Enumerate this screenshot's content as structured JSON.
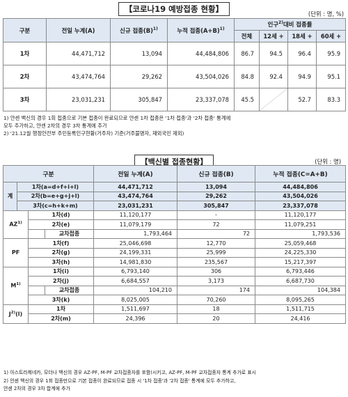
{
  "table1": {
    "title": "【코로나19 예방접종 현황】",
    "unit": "(단위 : 명, %)",
    "headers": {
      "category": "구분",
      "prev_cumulative": "전일 누계(A)",
      "new": "신규 접종(B)",
      "new_sup": "1)",
      "cumulative": "누적 접종(A+B)",
      "cumulative_sup": "1)",
      "pop_ratio": "인구",
      "pop_ratio_sup": "2)",
      "pop_ratio_rest": "대비 접종률",
      "all": "전체",
      "age12": "12세 +",
      "age18": "18세 +",
      "age60": "60세 +"
    },
    "rows": [
      {
        "label": "1차",
        "prev": "44,471,712",
        "new": "13,094",
        "cum": "44,484,806",
        "all": "86.7",
        "age12": "94.5",
        "age18": "96.4",
        "age60": "95.9"
      },
      {
        "label": "2차",
        "prev": "43,474,764",
        "new": "29,262",
        "cum": "43,504,026",
        "all": "84.8",
        "age12": "92.4",
        "age18": "94.9",
        "age60": "95.1"
      },
      {
        "label": "3차",
        "prev": "23,031,231",
        "new": "305,847",
        "cum": "23,337,078",
        "all": "45.5",
        "age12": "",
        "age18": "52.7",
        "age60": "83.3"
      }
    ],
    "notes": [
      "1) 얀센 백신의 경우 1회 접종으로 기본 접종이 완료되므로 얀센 1차 접종은 '1차 접종'과 '2차 접종' 통계에",
      "    모두 추가하고, 얀센 2차의 경우 3차 통계에 추가",
      "2) '21.12월 행정안전부 주민등록인구현황(거주자) 기준(거주불명자, 재외국민 제외)"
    ]
  },
  "table2": {
    "title": "【백신별 접종현황】",
    "unit": "(단위 : 명)",
    "headers": {
      "category": "구분",
      "prev": "전일 누계(A)",
      "new": "신규 접종(B)",
      "cum": "누적 접종(C=A+B)"
    },
    "total": {
      "label": "계",
      "rows": [
        {
          "label": "1차(a=d+f+i+l)",
          "prev": "44,471,712",
          "new": "13,094",
          "cum": "44,484,806"
        },
        {
          "label": "2차(b=e+g+j+l)",
          "prev": "43,474,764",
          "new": "29,262",
          "cum": "43,504,026"
        },
        {
          "label": "3차(c=h+k+m)",
          "prev": "23,031,231",
          "new": "305,847",
          "cum": "23,337,078"
        }
      ]
    },
    "az": {
      "label": "AZ",
      "sup": "1)",
      "d": {
        "label": "1차(d)",
        "prev": "11,120,177",
        "new": "-",
        "cum": "11,120,177"
      },
      "e": {
        "label": "2차(e)",
        "prev": "11,079,179",
        "new": "72",
        "cum": "11,079,251"
      },
      "cross": {
        "label": "교차접종",
        "prev": "1,793,464",
        "new": "72",
        "cum": "1,793,536"
      }
    },
    "pf": {
      "label": "PF",
      "f": {
        "label": "1차(f)",
        "prev": "25,046,698",
        "new": "12,770",
        "cum": "25,059,468"
      },
      "g": {
        "label": "2차(g)",
        "prev": "24,199,331",
        "new": "25,999",
        "cum": "24,225,330"
      },
      "h": {
        "label": "3차(h)",
        "prev": "14,981,830",
        "new": "235,567",
        "cum": "15,217,397"
      }
    },
    "m": {
      "label": "M",
      "sup": "1)",
      "i": {
        "label": "1차(i)",
        "prev": "6,793,140",
        "new": "306",
        "cum": "6,793,446"
      },
      "j": {
        "label": "2차(j)",
        "prev": "6,684,557",
        "new": "3,173",
        "cum": "6,687,730"
      },
      "cross": {
        "label": "교차접종",
        "prev": "104,210",
        "new": "174",
        "cum": "104,384"
      },
      "k": {
        "label": "3차(k)",
        "prev": "8,025,005",
        "new": "70,260",
        "cum": "8,095,265"
      }
    },
    "j": {
      "label": "J",
      "sup": "2)",
      "sub_label": "(l)",
      "first": {
        "label": "1차",
        "prev": "1,511,697",
        "new": "18",
        "cum": "1,511,715"
      },
      "m2": {
        "label": "2차(m)",
        "prev": "24,396",
        "new": "20",
        "cum": "24,416"
      }
    },
    "notes": [
      "1) 아스트라제네카, 모더나 백신의 경우 AZ-PF, M-PF 교차접종자를 포함(시키고, AZ-PF, M-PF 교차접종자 통계 추가로 표시",
      "2) 얀센 백신의 경우 1회 접종만으로 기본 접종이 완료되므로 접종 시 '1차 접종'과 '2차 접종' 통계에 모두 추가하고,",
      "    얀센 2차의 경우 3차 합계에 추가"
    ]
  }
}
